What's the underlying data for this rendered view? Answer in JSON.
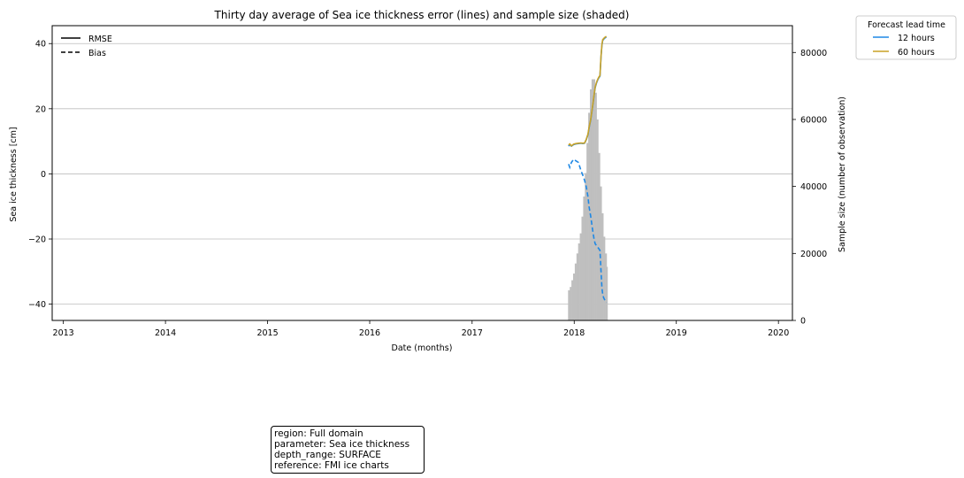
{
  "chart_data": {
    "type": "line",
    "title": "Thirty day average of Sea ice thickness error (lines) and sample size (shaded)",
    "xlabel": "Date (months)",
    "ylabel": "Sea ice thickness [cm]",
    "ylabel_right": "Sample size (number of observation)",
    "x_ticks": [
      "2013",
      "2014",
      "2015",
      "2016",
      "2017",
      "2018",
      "2019",
      "2020"
    ],
    "y_ticks": [
      "40",
      "20",
      "0",
      "−20",
      "−40"
    ],
    "y2_ticks": [
      "80000",
      "60000",
      "40000",
      "20000",
      "0"
    ],
    "ylim": [
      -45,
      45.5
    ],
    "y2lim": [
      0,
      88000
    ],
    "xlim": [
      "2012-11-22",
      "2020-02-20"
    ],
    "grid": "horizontal",
    "style_legend": {
      "placement": "upper-left",
      "entries": [
        {
          "label": "RMSE",
          "linestyle": "solid"
        },
        {
          "label": "Bias",
          "linestyle": "dashed"
        }
      ]
    },
    "lead_time_legend": {
      "title": "Forecast lead time",
      "placement": "outside-top-right",
      "entries": [
        {
          "label": "12 hours",
          "color": "#1e88e5"
        },
        {
          "label": "60 hours",
          "color": "#c9a227"
        }
      ]
    },
    "series": [
      {
        "name": "12 hours",
        "color": "#1e88e5",
        "metric": "RMSE",
        "x": [
          "2017-12-12",
          "2017-12-16",
          "2017-12-22",
          "2017-12-30",
          "2018-01-07",
          "2018-01-16",
          "2018-01-25",
          "2018-02-01",
          "2018-02-07",
          "2018-02-13",
          "2018-02-19",
          "2018-02-23",
          "2018-03-01",
          "2018-03-05",
          "2018-03-09",
          "2018-03-13",
          "2018-03-17",
          "2018-03-22",
          "2018-03-26",
          "2018-03-30",
          "2018-04-03",
          "2018-04-07",
          "2018-04-10",
          "2018-04-13",
          "2018-04-16",
          "2018-04-19",
          "2018-04-22",
          "2018-04-26"
        ],
        "values": [
          8.5,
          9.0,
          8.5,
          9.0,
          9.2,
          9.3,
          9.4,
          9.3,
          9.4,
          10.5,
          12.0,
          14.0,
          16.5,
          19.0,
          21.5,
          24.0,
          26.5,
          28.0,
          28.8,
          29.5,
          30.0,
          36.0,
          39.5,
          41.0,
          41.3,
          41.6,
          41.8,
          42.0
        ]
      },
      {
        "name": "12 hours",
        "color": "#1e88e5",
        "metric": "Bias",
        "x": [
          "2017-12-12",
          "2017-12-16",
          "2017-12-22",
          "2017-12-30",
          "2018-01-07",
          "2018-01-16",
          "2018-01-25",
          "2018-02-01",
          "2018-02-07",
          "2018-02-13",
          "2018-02-19",
          "2018-02-23",
          "2018-03-01",
          "2018-03-05",
          "2018-03-09",
          "2018-03-13",
          "2018-03-17",
          "2018-03-22",
          "2018-03-26",
          "2018-03-30",
          "2018-04-03",
          "2018-04-07",
          "2018-04-10",
          "2018-04-13",
          "2018-04-16",
          "2018-04-19",
          "2018-04-22",
          "2018-04-26"
        ],
        "values": [
          3.0,
          2.0,
          3.5,
          4.5,
          4.0,
          3.5,
          1.0,
          -0.5,
          -2.0,
          -4.0,
          -7.0,
          -10.0,
          -13.0,
          -15.5,
          -18.0,
          -20.0,
          -21.5,
          -22.0,
          -22.5,
          -23.0,
          -23.5,
          -30.0,
          -35.0,
          -37.0,
          -38.0,
          -38.5,
          -39.0,
          -39.5
        ]
      },
      {
        "name": "60 hours",
        "color": "#c9a227",
        "metric": "RMSE",
        "x": [
          "2017-12-12",
          "2017-12-16",
          "2017-12-22",
          "2017-12-30",
          "2018-01-07",
          "2018-01-16",
          "2018-01-25",
          "2018-02-01",
          "2018-02-07",
          "2018-02-13",
          "2018-02-19",
          "2018-02-23",
          "2018-03-01",
          "2018-03-05",
          "2018-03-09",
          "2018-03-13",
          "2018-03-17",
          "2018-03-22",
          "2018-03-26",
          "2018-03-30",
          "2018-04-03",
          "2018-04-07",
          "2018-04-10",
          "2018-04-13",
          "2018-04-16",
          "2018-04-19",
          "2018-04-22",
          "2018-04-26"
        ],
        "values": [
          8.8,
          9.2,
          8.6,
          9.1,
          9.3,
          9.4,
          9.5,
          9.4,
          9.5,
          10.6,
          12.2,
          14.2,
          16.7,
          19.2,
          21.7,
          24.2,
          26.7,
          28.2,
          29.0,
          29.7,
          30.2,
          36.2,
          39.7,
          41.2,
          41.5,
          41.8,
          42.0,
          42.2
        ]
      }
    ],
    "sample_size": {
      "color": "#bfbfbf",
      "x": [
        "2017-12-10",
        "2017-12-16",
        "2017-12-22",
        "2017-12-28",
        "2018-01-03",
        "2018-01-09",
        "2018-01-15",
        "2018-01-21",
        "2018-01-27",
        "2018-02-02",
        "2018-02-08",
        "2018-02-14",
        "2018-02-20",
        "2018-02-26",
        "2018-03-04",
        "2018-03-10",
        "2018-03-16",
        "2018-03-22",
        "2018-03-28",
        "2018-04-03",
        "2018-04-09",
        "2018-04-15",
        "2018-04-21",
        "2018-04-27",
        "2018-04-30"
      ],
      "values": [
        9000,
        10000,
        12000,
        14000,
        17000,
        20000,
        23000,
        26000,
        31000,
        37000,
        44000,
        53000,
        62000,
        69000,
        72000,
        72000,
        68000,
        60000,
        50000,
        40000,
        32000,
        25000,
        20000,
        16000,
        0
      ]
    }
  },
  "info_box": {
    "lines": [
      "region: Full domain",
      "parameter: Sea ice thickness",
      "depth_range: SURFACE",
      "reference: FMI ice charts"
    ]
  }
}
